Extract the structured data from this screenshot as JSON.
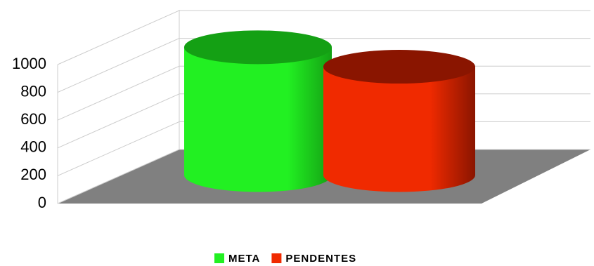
{
  "chart_data": {
    "type": "bar3d-cylinder",
    "categories": [
      null
    ],
    "series": [
      {
        "name": "META",
        "color": "#22f022",
        "top_color": "#14a014",
        "values": [
          920
        ]
      },
      {
        "name": "PENDENTES",
        "color": "#f02a00",
        "top_color": "#8a1500",
        "values": [
          780
        ]
      }
    ],
    "ylim": [
      0,
      1000
    ],
    "yticks": [
      0,
      200,
      400,
      600,
      800,
      1000
    ],
    "grid": true,
    "floor_color": "#808080",
    "legend": "bottom"
  }
}
